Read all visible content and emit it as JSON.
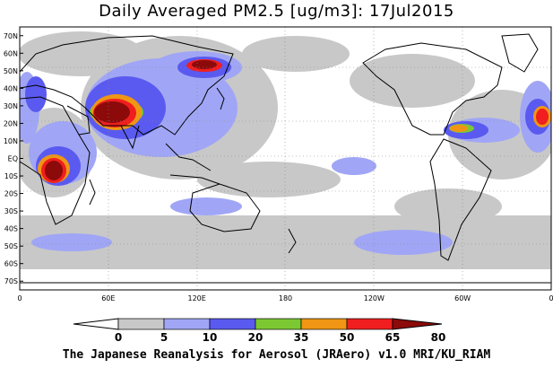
{
  "title": "Daily Averaged PM2.5 [ug/m3]: 17Jul2015",
  "credit": "The Japanese Reanalysis for Aerosol (JRAero) v1.0 MRI/KU_RIAM",
  "map": {
    "lon_range": [
      0,
      360
    ],
    "lat_range": [
      -75,
      75
    ],
    "lat_labels": [
      "70N",
      "60N",
      "50N",
      "40N",
      "30N",
      "20N",
      "10N",
      "EQ",
      "10S",
      "20S",
      "30S",
      "40S",
      "50S",
      "60S",
      "70S"
    ],
    "lon_labels": [
      "0",
      "60E",
      "120E",
      "180",
      "120W",
      "60W",
      "0"
    ],
    "ocean_color": "#ffffff",
    "coast_color": "#000000",
    "grid_style": "dotted"
  },
  "colorbar": {
    "levels": [
      "0",
      "5",
      "10",
      "20",
      "35",
      "50",
      "65",
      "80"
    ],
    "colors": [
      "#ffffff",
      "#c8c8c8",
      "#a0a6f5",
      "#5a5af0",
      "#7cc832",
      "#f09614",
      "#f01e1e",
      "#8c0a0a"
    ]
  }
}
